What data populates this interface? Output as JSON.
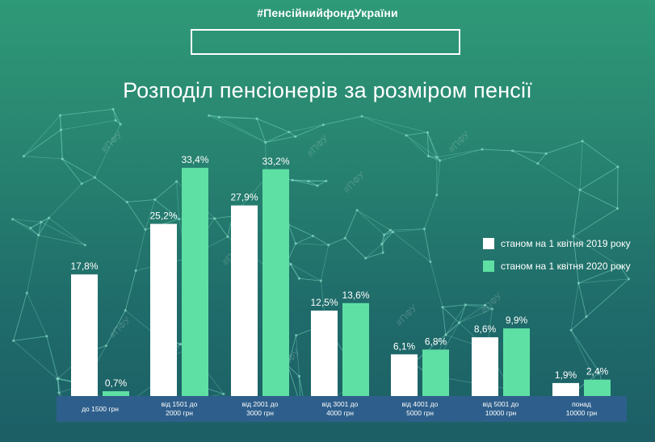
{
  "header": {
    "hashtag": "#ПенсійнийфондУкраїни"
  },
  "chart_data": {
    "type": "bar",
    "title": "Розподіл пенсіонерів за розміром пенсії",
    "categories": [
      [
        "до 1500 грн"
      ],
      [
        "від 1501 до",
        "2000 грн"
      ],
      [
        "від 2001 до",
        "3000 грн"
      ],
      [
        "від 3001 до",
        "4000 грн"
      ],
      [
        "від 4001 до",
        "5000 грн"
      ],
      [
        "від 5001 до",
        "10000 грн"
      ],
      [
        "понад",
        "10000 грн"
      ]
    ],
    "series": [
      {
        "name": "станом на 1 квітня 2019 року",
        "color": "#ffffff",
        "values": [
          17.8,
          25.2,
          27.9,
          12.5,
          6.1,
          8.6,
          1.9
        ],
        "labels": [
          "17,8%",
          "25,2%",
          "27,9%",
          "12,5%",
          "6,1%",
          "8,6%",
          "1,9%"
        ]
      },
      {
        "name": "станом на 1 квітня 2020 року",
        "color": "#5ee0a4",
        "values": [
          0.7,
          33.4,
          33.2,
          13.6,
          6.8,
          9.9,
          2.4
        ],
        "labels": [
          "0,7%",
          "33,4%",
          "33,2%",
          "13,6%",
          "6,8%",
          "9,9%",
          "2,4%"
        ]
      }
    ],
    "ylim": [
      0,
      34
    ],
    "legend": "right",
    "grid": false,
    "category_band_color": "#2e5f8c",
    "watermark": "#ПФУ"
  }
}
